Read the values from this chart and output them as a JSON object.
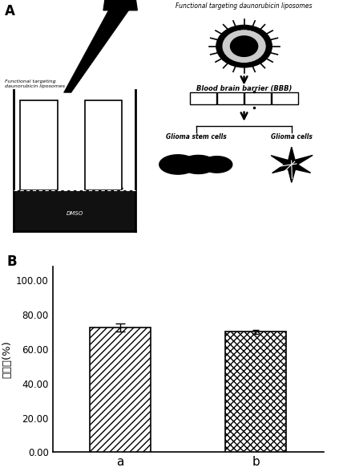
{
  "panel_b": {
    "categories": [
      "a",
      "b"
    ],
    "values": [
      72.5,
      70.0
    ],
    "errors": [
      2.5,
      1.0
    ],
    "ylabel": "生存率(%)",
    "yticks": [
      0.0,
      20.0,
      40.0,
      60.0,
      80.0,
      100.0
    ],
    "ylim": [
      0,
      108
    ],
    "hatch_a": "////",
    "hatch_b": "xxxx",
    "bar_color": "white",
    "bar_edgecolor": "black",
    "bar_width": 0.45
  },
  "panel_a_label": "A",
  "panel_b_label": "B",
  "title_text": "Functional targeting daunorubicin liposomes",
  "bbb_text": "Blood brain barrier (BBB)",
  "glioma_stem": "Glioma stem cells",
  "glioma_cells": "Glioma cells",
  "lipopipette_label": "Functional targeting\ndaunorubicin liposomes",
  "dmso_label": "DMSO",
  "background_color": "#ffffff"
}
